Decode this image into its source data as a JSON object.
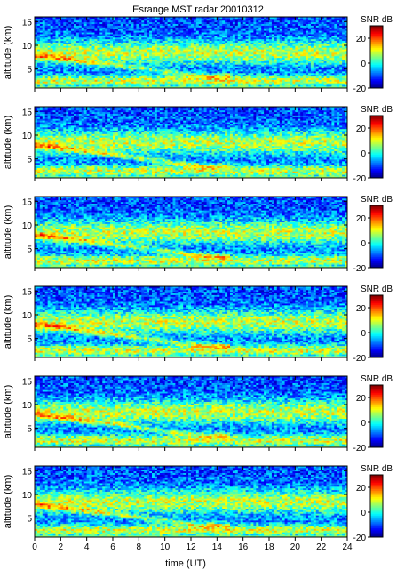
{
  "chart_data": {
    "type": "heatmap",
    "title": "Esrange MST radar 20010312",
    "xlabel": "time (UT)",
    "ylabel": "altitude (km)",
    "xlim": [
      0,
      24
    ],
    "ylim": [
      1,
      16
    ],
    "x_ticks": [
      0,
      2,
      4,
      6,
      8,
      10,
      12,
      14,
      16,
      18,
      20,
      22,
      24
    ],
    "y_ticks": [
      5,
      10,
      15
    ],
    "colorbar": {
      "label": "SNR dB",
      "range": [
        -20,
        30
      ],
      "ticks": [
        20,
        0,
        -20
      ],
      "colormap": "jet"
    },
    "panel_count": 6,
    "description_of_field": {
      "strong_layer_altitude_km": [
        1.5,
        3.5
      ],
      "strong_layer_snr_db": 25,
      "mid_band_altitude_km": [
        6,
        11
      ],
      "mid_band_snr_db": 8,
      "upper_noise_altitude_km": [
        12,
        16
      ],
      "upper_noise_snr_db": -10,
      "descending_layer": {
        "start_time_ut": 0,
        "start_alt_km": 8,
        "end_time_ut": 13,
        "end_alt_km": 3.5
      }
    },
    "colors": {
      "jet_low": "#00008f",
      "jet_mid": "#7fff7f",
      "jet_high": "#800000"
    }
  }
}
